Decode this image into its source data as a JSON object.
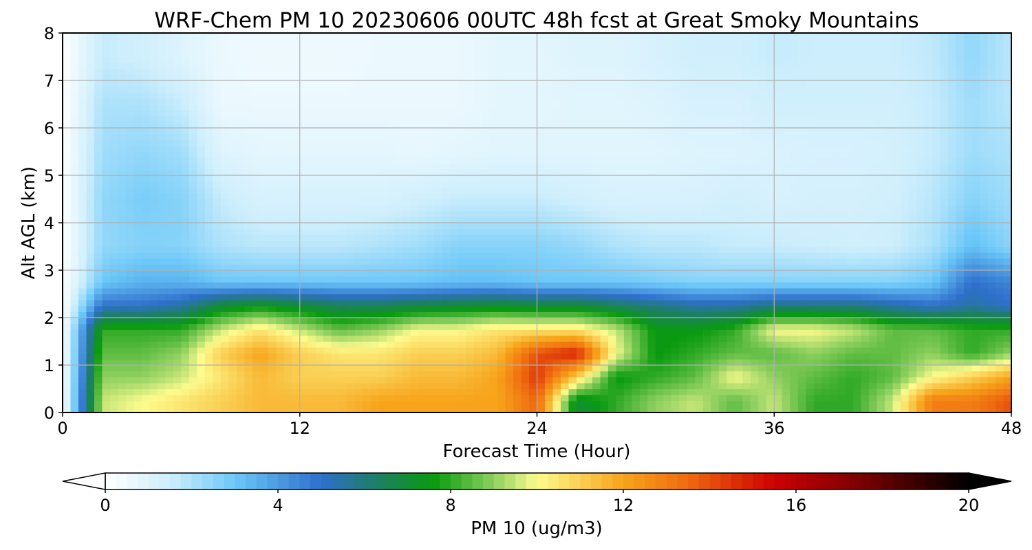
{
  "chart_data": {
    "type": "heatmap",
    "title": "WRF-Chem PM 10  20230606 00UTC 48h fcst at Great Smoky Mountains",
    "xlabel": "Forecast Time (Hour)",
    "ylabel": "Alt AGL (km)",
    "xlim": [
      0,
      48
    ],
    "ylim": [
      0,
      8
    ],
    "x_ticks": [
      0,
      12,
      24,
      36,
      48
    ],
    "y_ticks": [
      0,
      1,
      2,
      3,
      4,
      5,
      6,
      7,
      8
    ],
    "grid": true,
    "colorbar": {
      "label": "PM 10  (ug/m3)",
      "range": [
        0,
        20
      ],
      "ticks": [
        0,
        4,
        8,
        12,
        16,
        20
      ],
      "extend": "both",
      "placement": "bottom",
      "stops": [
        {
          "value": 0,
          "color": "#ffffff"
        },
        {
          "value": 1.5,
          "color": "#cdeefc"
        },
        {
          "value": 3,
          "color": "#6cc8f8"
        },
        {
          "value": 5,
          "color": "#2e6fcc"
        },
        {
          "value": 6.3,
          "color": "#1d7f63"
        },
        {
          "value": 7.6,
          "color": "#0a9a10"
        },
        {
          "value": 9,
          "color": "#8fd060"
        },
        {
          "value": 10,
          "color": "#fdfb8e"
        },
        {
          "value": 12,
          "color": "#f7a41b"
        },
        {
          "value": 13.5,
          "color": "#ef6a10"
        },
        {
          "value": 15.5,
          "color": "#cc0000"
        },
        {
          "value": 17.5,
          "color": "#7a0000"
        },
        {
          "value": 20,
          "color": "#000000"
        }
      ]
    },
    "hours": [
      0,
      2,
      4,
      6,
      8,
      10,
      12,
      14,
      16,
      18,
      20,
      22,
      24,
      26,
      28,
      30,
      32,
      34,
      36,
      38,
      40,
      42,
      44,
      46,
      48
    ],
    "altitudes_km": [
      0.25,
      0.75,
      1.25,
      1.75,
      2.25,
      2.75,
      3.5,
      4.5,
      5.5,
      6.5,
      7.5
    ],
    "values": [
      [
        0,
        9.5,
        10,
        10.5,
        11,
        11.5,
        11.5,
        11.5,
        12,
        12,
        12,
        12,
        13.5,
        7,
        8,
        9,
        9.5,
        8.5,
        9.5,
        8,
        8,
        9.5,
        13,
        13,
        14
      ],
      [
        0,
        9,
        9,
        9.5,
        10.5,
        11.5,
        11,
        11,
        11,
        11.5,
        11.5,
        12,
        14.5,
        11,
        7.5,
        8,
        8.5,
        10,
        9,
        8.5,
        8,
        8.5,
        10,
        11,
        12
      ],
      [
        0,
        8.5,
        8.5,
        9,
        11,
        12,
        11,
        10.5,
        10.5,
        11,
        11,
        11.5,
        14,
        15,
        10,
        7.5,
        8,
        8.5,
        8.5,
        9,
        8.5,
        8.5,
        9,
        8,
        9
      ],
      [
        0,
        8,
        8,
        8,
        9.5,
        10.5,
        9.5,
        8.5,
        9,
        10,
        10,
        10.5,
        10.5,
        10.5,
        9.5,
        7.5,
        7.5,
        8,
        10,
        10,
        9.5,
        8.5,
        8.5,
        8,
        8
      ],
      [
        0,
        5,
        5,
        5.5,
        7,
        7.5,
        7,
        6.5,
        6.5,
        6.8,
        7,
        7.2,
        7,
        7,
        6.5,
        6,
        5.5,
        5.5,
        6,
        6,
        6,
        5.5,
        5,
        5.5,
        5
      ],
      [
        0,
        3,
        3.5,
        3.5,
        3,
        3,
        3,
        3,
        3,
        3,
        3.2,
        3.2,
        3,
        3,
        3,
        2.8,
        2.6,
        2.6,
        2.6,
        2.6,
        2.6,
        2.6,
        3,
        5,
        4.5
      ],
      [
        0,
        2.4,
        2.6,
        2.6,
        2,
        1.8,
        1.8,
        1.8,
        2,
        2.2,
        2.6,
        2.6,
        2.6,
        2.4,
        2,
        1.8,
        1.8,
        1.6,
        1.6,
        1.5,
        1.4,
        1.5,
        2,
        3.2,
        2.5
      ],
      [
        0,
        2.4,
        2.8,
        2.6,
        1.6,
        1.2,
        1.2,
        1.2,
        1.2,
        1.4,
        1.6,
        1.6,
        1.6,
        1.4,
        1.2,
        1.2,
        1.2,
        1.4,
        1.2,
        1.3,
        1.3,
        1.4,
        1.8,
        2.6,
        2.2
      ],
      [
        0,
        2.2,
        2.4,
        2.2,
        1,
        0.8,
        0.8,
        0.8,
        0.8,
        0.7,
        0.8,
        0.9,
        0.9,
        0.9,
        0.9,
        0.9,
        1,
        1,
        1.1,
        1.2,
        1.2,
        1.3,
        1.6,
        2.2,
        2
      ],
      [
        0,
        2,
        2,
        1.6,
        0.6,
        0.6,
        0.6,
        0.6,
        0.6,
        0.6,
        0.6,
        0.8,
        0.8,
        0.9,
        0.9,
        1,
        1.2,
        1.2,
        1.4,
        1.4,
        1.4,
        1.4,
        1.6,
        2.2,
        1.8
      ],
      [
        0,
        1.6,
        1.4,
        1,
        0.6,
        0.5,
        0.5,
        0.5,
        0.6,
        0.6,
        0.6,
        0.8,
        0.8,
        1,
        1,
        1.2,
        1.4,
        1.4,
        1.6,
        1.5,
        1.5,
        1.5,
        1.7,
        2.4,
        1.8
      ]
    ]
  }
}
